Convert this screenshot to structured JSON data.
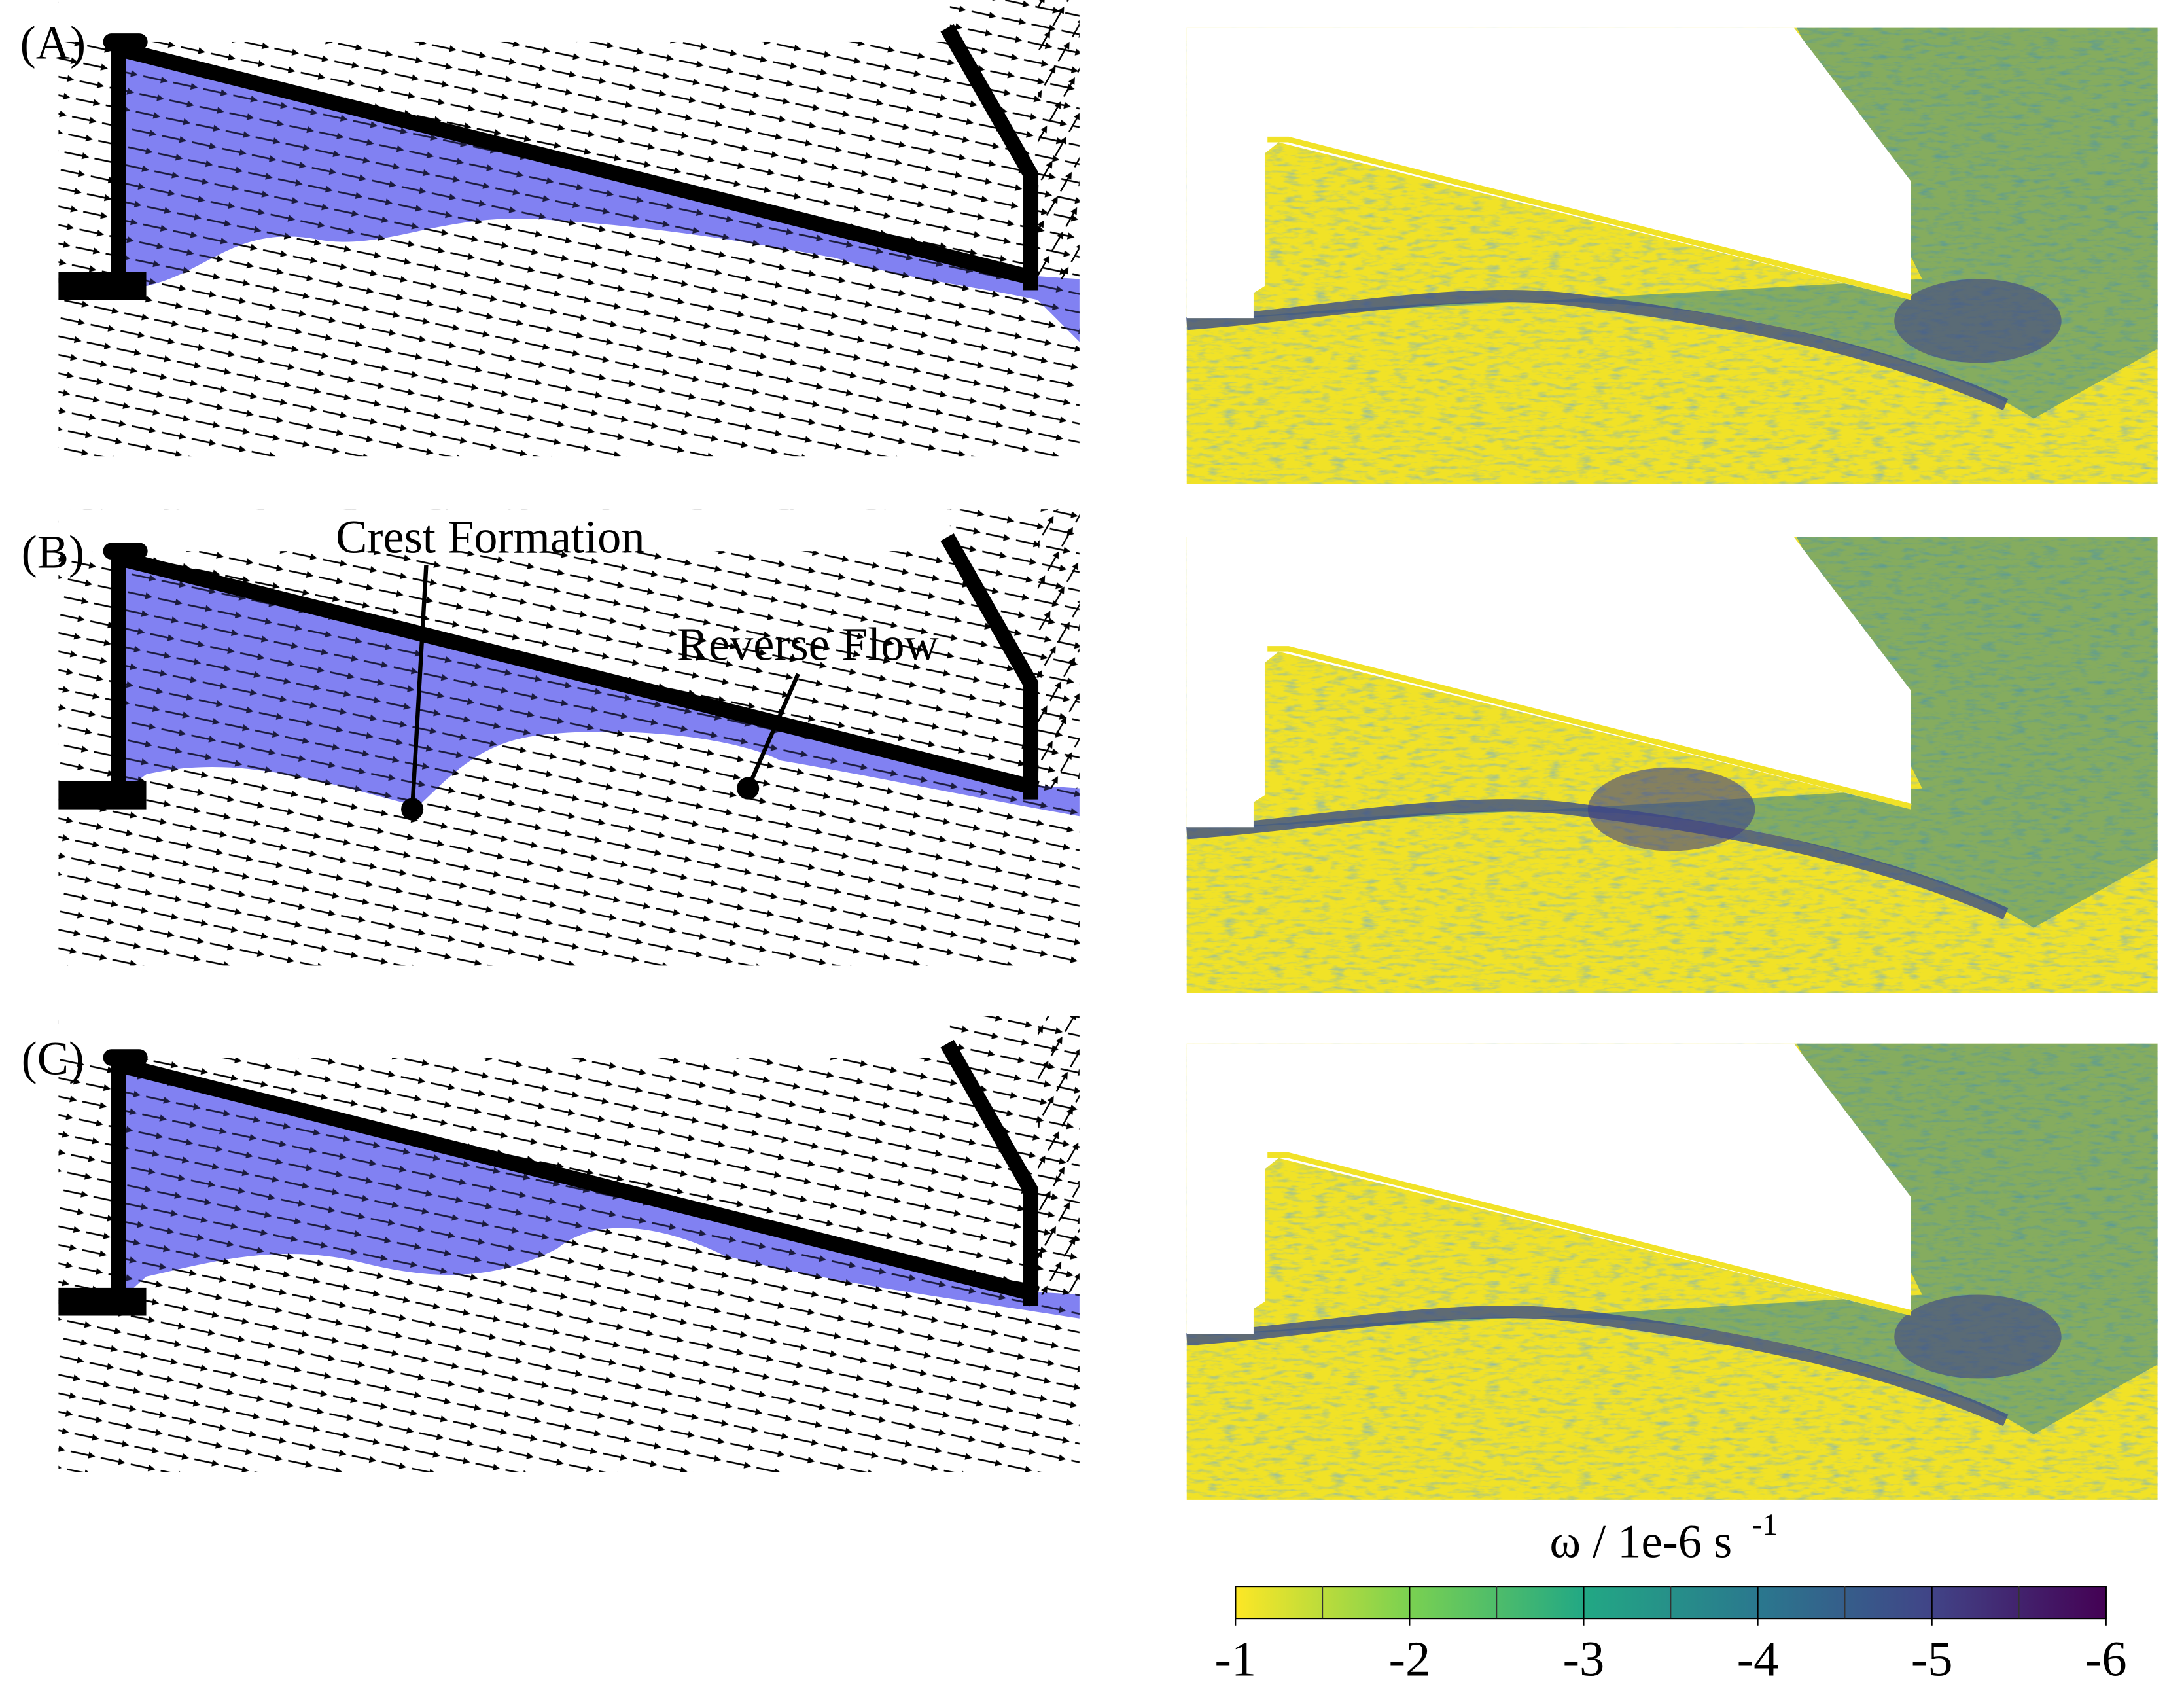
{
  "panels": [
    {
      "label": "(A)"
    },
    {
      "label": "(B)"
    },
    {
      "label": "(C)"
    }
  ],
  "annotations": {
    "crest": "Crest Formation",
    "reverse": "Reverse Flow"
  },
  "colorbar": {
    "label": "ω / 1e-6 s",
    "label_superscript": "-1",
    "lim": [
      -1,
      -6
    ],
    "ticks": [
      -1,
      -2,
      -3,
      -4,
      -5,
      -6
    ],
    "minor_ticks": [
      -1.5,
      -2.5,
      -3.5,
      -4.5,
      -5.5
    ]
  }
}
